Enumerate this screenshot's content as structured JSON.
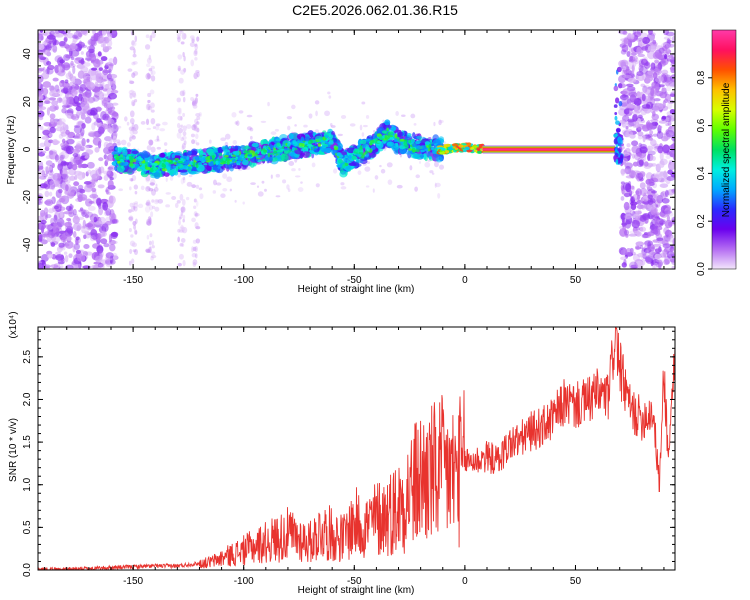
{
  "title": "C2E5.2026.062.01.36.R15",
  "colors": {
    "snr_line": "#e8332e",
    "colormap": [
      "#f3e6fb",
      "#b46cf2",
      "#6a00ee",
      "#2a2aff",
      "#00aaff",
      "#00f0e0",
      "#00e060",
      "#60ff00",
      "#d8ff00",
      "#ffc000",
      "#ff5000",
      "#ff1060",
      "#ff3aa8"
    ]
  },
  "chart_data": [
    {
      "type": "heatmap",
      "xlabel": "Height of straight line (km)",
      "ylabel": "Frequency (Hz)",
      "xlim": [
        -193,
        95
      ],
      "ylim": [
        -50,
        50
      ],
      "xticks": [
        -150,
        -100,
        -50,
        0,
        50
      ],
      "xtick_labels": [
        "-150",
        "-100",
        "-50",
        "0",
        "50"
      ],
      "yticks": [
        -40,
        -20,
        0,
        20,
        40
      ],
      "ytick_labels": [
        "-40",
        "-20",
        "0",
        "20",
        "40"
      ],
      "colorbar": {
        "label": "Normalized spectral amplitude",
        "range": [
          0,
          1
        ],
        "ticks": [
          0.0,
          0.2,
          0.4,
          0.6,
          0.8
        ],
        "tick_labels": [
          "0.0",
          "0.2",
          "0.4",
          "0.6",
          "0.8"
        ]
      },
      "ridge": {
        "x": [
          -158,
          -150,
          -140,
          -130,
          -120,
          -110,
          -100,
          -90,
          -80,
          -70,
          -60,
          -55,
          -50,
          -40,
          -35,
          -30,
          -20,
          -10,
          0,
          10,
          20,
          40,
          60,
          68
        ],
        "y": [
          -4,
          -5,
          -7,
          -6,
          -5,
          -4,
          -3,
          -1,
          1,
          2,
          4,
          -6,
          -3,
          3,
          7,
          3,
          1,
          0,
          1,
          0,
          0,
          0,
          0,
          1
        ]
      }
    },
    {
      "type": "line",
      "xlabel": "Height of straight line (km)",
      "ylabel": "SNR (10 * v/v)",
      "yscale_note": "(x10⁴)",
      "xlim": [
        -193,
        95
      ],
      "ylim": [
        0,
        2.85
      ],
      "xticks": [
        -150,
        -100,
        -50,
        0,
        50
      ],
      "xtick_labels": [
        "-150",
        "-100",
        "-50",
        "0",
        "50"
      ],
      "yticks": [
        0.0,
        0.5,
        1.0,
        1.5,
        2.0,
        2.5
      ],
      "ytick_labels": [
        "0.0",
        "0.5",
        "1.0",
        "1.5",
        "2.0",
        "2.5"
      ],
      "series": [
        {
          "x": [
            -193,
            -180,
            -170,
            -160,
            -150,
            -140,
            -130,
            -120,
            -115,
            -110,
            -105,
            -100,
            -95,
            -90,
            -85,
            -80,
            -75,
            -70,
            -65,
            -60,
            -55,
            -50,
            -45,
            -40,
            -35,
            -30,
            -25,
            -20,
            -15,
            -10,
            -5,
            0,
            5,
            10,
            15,
            20,
            25,
            30,
            35,
            40,
            45,
            50,
            55,
            60,
            65,
            68,
            70,
            75,
            80,
            85,
            88,
            90,
            92,
            95
          ],
          "y": [
            0.01,
            0.01,
            0.02,
            0.03,
            0.04,
            0.05,
            0.05,
            0.08,
            0.1,
            0.15,
            0.2,
            0.25,
            0.3,
            0.35,
            0.4,
            0.45,
            0.4,
            0.35,
            0.5,
            0.45,
            0.4,
            0.6,
            0.55,
            0.65,
            0.7,
            0.8,
            1.0,
            1.15,
            1.2,
            1.25,
            1.2,
            1.3,
            1.3,
            1.35,
            1.3,
            1.5,
            1.55,
            1.65,
            1.7,
            1.8,
            2.0,
            1.95,
            2.0,
            2.1,
            2.05,
            2.85,
            2.4,
            1.9,
            1.8,
            1.9,
            1.0,
            2.4,
            1.3,
            2.65
          ]
        }
      ]
    }
  ]
}
